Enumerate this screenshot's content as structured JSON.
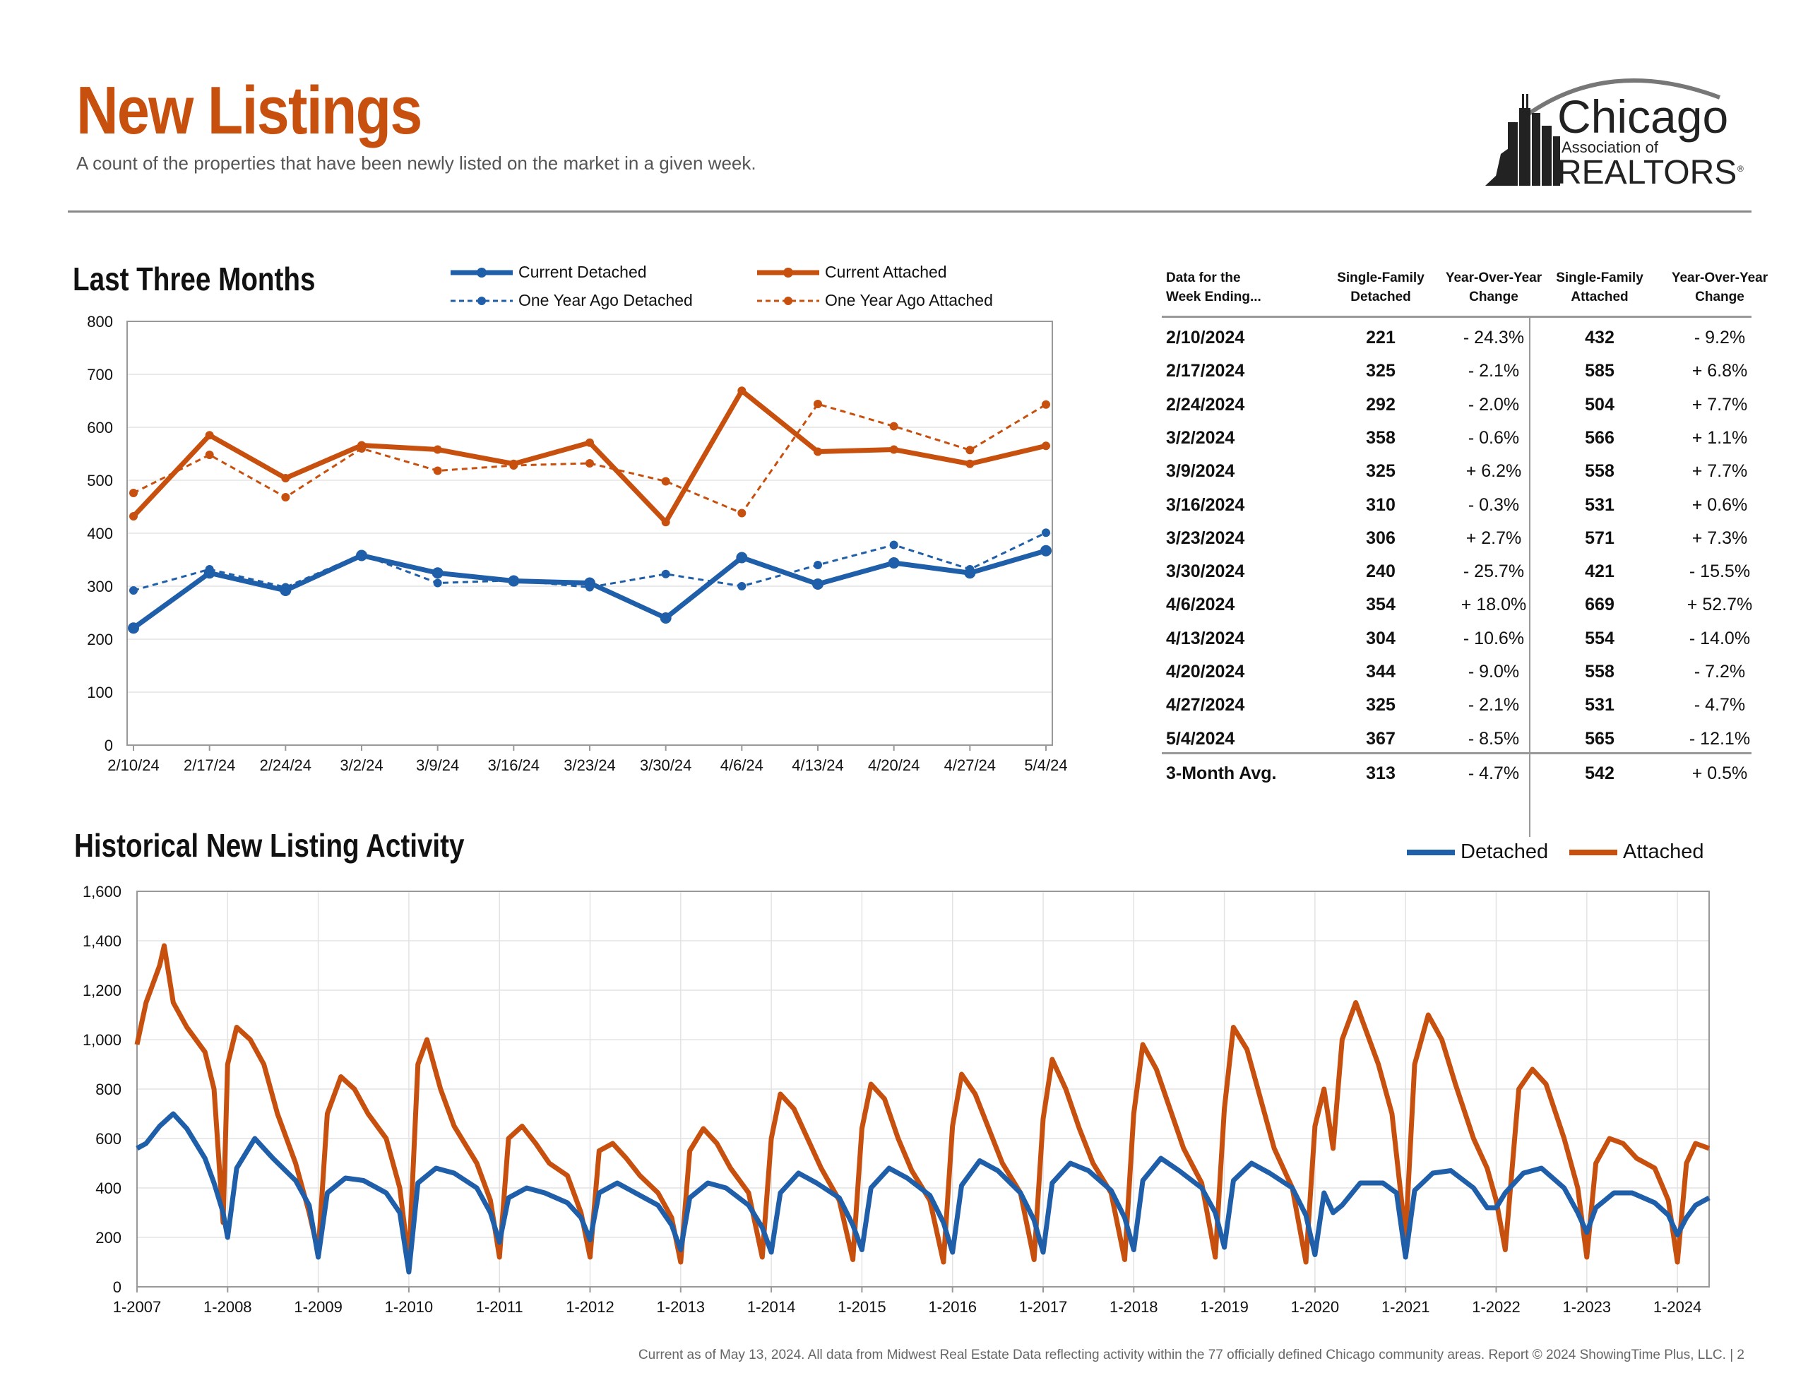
{
  "header": {
    "title": "New Listings",
    "subtitle": "A count of the properties that have been newly listed on the market in a given week."
  },
  "logo": {
    "line1": "Chicago",
    "line2": "Association of",
    "line3": "REALTORS",
    "mark": "®"
  },
  "colors": {
    "detached": "#1f5ea8",
    "attached": "#c8500e",
    "title": "#c8500e"
  },
  "three_months": {
    "title": "Last Three Months",
    "legend": {
      "current_detached": "Current Detached",
      "current_attached": "Current Attached",
      "ago_detached": "One Year Ago Detached",
      "ago_attached": "One Year Ago Attached"
    }
  },
  "table": {
    "headers": {
      "week": [
        "Data for the",
        "Week Ending..."
      ],
      "sf_detached": [
        "Single-Family",
        "Detached"
      ],
      "yoy1": [
        "Year-Over-Year",
        "Change"
      ],
      "sf_attached": [
        "Single-Family",
        "Attached"
      ],
      "yoy2": [
        "Year-Over-Year",
        "Change"
      ]
    },
    "rows": [
      [
        "2/10/2024",
        "221",
        "- 24.3%",
        "432",
        "- 9.2%"
      ],
      [
        "2/17/2024",
        "325",
        "- 2.1%",
        "585",
        "+ 6.8%"
      ],
      [
        "2/24/2024",
        "292",
        "- 2.0%",
        "504",
        "+ 7.7%"
      ],
      [
        "3/2/2024",
        "358",
        "- 0.6%",
        "566",
        "+ 1.1%"
      ],
      [
        "3/9/2024",
        "325",
        "+ 6.2%",
        "558",
        "+ 7.7%"
      ],
      [
        "3/16/2024",
        "310",
        "- 0.3%",
        "531",
        "+ 0.6%"
      ],
      [
        "3/23/2024",
        "306",
        "+ 2.7%",
        "571",
        "+ 7.3%"
      ],
      [
        "3/30/2024",
        "240",
        "- 25.7%",
        "421",
        "- 15.5%"
      ],
      [
        "4/6/2024",
        "354",
        "+ 18.0%",
        "669",
        "+ 52.7%"
      ],
      [
        "4/13/2024",
        "304",
        "- 10.6%",
        "554",
        "- 14.0%"
      ],
      [
        "4/20/2024",
        "344",
        "- 9.0%",
        "558",
        "- 7.2%"
      ],
      [
        "4/27/2024",
        "325",
        "- 2.1%",
        "531",
        "- 4.7%"
      ],
      [
        "5/4/2024",
        "367",
        "- 8.5%",
        "565",
        "- 12.1%"
      ]
    ],
    "avg": [
      "3-Month Avg.",
      "313",
      "- 4.7%",
      "542",
      "+ 0.5%"
    ]
  },
  "historical": {
    "title": "Historical New Listing Activity",
    "legend": {
      "detached": "Detached",
      "attached": "Attached"
    }
  },
  "footer": "Current as of May 13, 2024.  All data from Midwest Real Estate Data reflecting activity within the 77 officially defined Chicago community areas. Report © 2024 ShowingTime Plus, LLC.  |  2",
  "chart_data": [
    {
      "type": "line",
      "categories": [
        "2/10/24",
        "2/17/24",
        "2/24/24",
        "3/2/24",
        "3/9/24",
        "3/16/24",
        "3/23/24",
        "3/30/24",
        "4/6/24",
        "4/13/24",
        "4/20/24",
        "4/27/24",
        "5/4/24"
      ],
      "ylim": [
        0,
        800
      ],
      "yticks": [
        0,
        100,
        200,
        300,
        400,
        500,
        600,
        700,
        800
      ],
      "series": [
        {
          "name": "Current Detached",
          "values": [
            221,
            325,
            292,
            358,
            325,
            310,
            306,
            240,
            354,
            304,
            344,
            325,
            367
          ]
        },
        {
          "name": "Current Attached",
          "values": [
            432,
            585,
            504,
            566,
            558,
            531,
            571,
            421,
            669,
            554,
            558,
            531,
            565
          ]
        },
        {
          "name": "One Year Ago Detached",
          "values": [
            292,
            332,
            298,
            360,
            306,
            311,
            298,
            323,
            300,
            340,
            378,
            332,
            401
          ]
        },
        {
          "name": "One Year Ago Attached",
          "values": [
            476,
            548,
            468,
            560,
            518,
            528,
            532,
            498,
            438,
            644,
            602,
            557,
            643
          ]
        }
      ],
      "grid": true
    },
    {
      "type": "line",
      "xlabels": [
        "1-2007",
        "1-2008",
        "1-2009",
        "1-2010",
        "1-2011",
        "1-2012",
        "1-2013",
        "1-2014",
        "1-2015",
        "1-2016",
        "1-2017",
        "1-2018",
        "1-2019",
        "1-2020",
        "1-2021",
        "1-2022",
        "1-2023",
        "1-2024"
      ],
      "ylim": [
        0,
        1600
      ],
      "yticks": [
        "0",
        "200",
        "400",
        "600",
        "800",
        "1,000",
        "1,200",
        "1,400",
        "1,600"
      ],
      "x_years": [
        2007,
        2024.35
      ],
      "series": [
        {
          "name": "Detached",
          "years": [
            2007.0,
            2007.1,
            2007.25,
            2007.4,
            2007.55,
            2007.75,
            2007.85,
            2007.95,
            2008.0,
            2008.1,
            2008.3,
            2008.5,
            2008.75,
            2008.9,
            2009.0,
            2009.1,
            2009.3,
            2009.5,
            2009.75,
            2009.9,
            2010.0,
            2010.1,
            2010.3,
            2010.5,
            2010.75,
            2010.9,
            2011.0,
            2011.1,
            2011.3,
            2011.5,
            2011.75,
            2011.9,
            2012.0,
            2012.1,
            2012.3,
            2012.5,
            2012.75,
            2012.9,
            2013.0,
            2013.1,
            2013.3,
            2013.5,
            2013.75,
            2013.9,
            2014.0,
            2014.1,
            2014.3,
            2014.5,
            2014.75,
            2014.9,
            2015.0,
            2015.1,
            2015.3,
            2015.5,
            2015.75,
            2015.9,
            2016.0,
            2016.1,
            2016.3,
            2016.5,
            2016.75,
            2016.9,
            2017.0,
            2017.1,
            2017.3,
            2017.5,
            2017.75,
            2017.9,
            2018.0,
            2018.1,
            2018.3,
            2018.5,
            2018.75,
            2018.9,
            2019.0,
            2019.1,
            2019.3,
            2019.5,
            2019.75,
            2019.9,
            2020.0,
            2020.1,
            2020.2,
            2020.3,
            2020.5,
            2020.75,
            2020.9,
            2021.0,
            2021.1,
            2021.3,
            2021.5,
            2021.75,
            2021.9,
            2022.0,
            2022.1,
            2022.3,
            2022.5,
            2022.75,
            2022.9,
            2023.0,
            2023.1,
            2023.3,
            2023.5,
            2023.75,
            2023.9,
            2024.0,
            2024.1,
            2024.2,
            2024.35
          ],
          "values": [
            560,
            580,
            650,
            700,
            640,
            520,
            420,
            300,
            200,
            480,
            600,
            520,
            430,
            330,
            120,
            380,
            440,
            430,
            380,
            300,
            60,
            420,
            480,
            460,
            400,
            300,
            180,
            360,
            400,
            380,
            340,
            280,
            190,
            380,
            420,
            380,
            330,
            250,
            150,
            360,
            420,
            400,
            330,
            240,
            140,
            380,
            460,
            420,
            360,
            250,
            150,
            400,
            480,
            440,
            370,
            260,
            140,
            410,
            510,
            470,
            380,
            270,
            140,
            420,
            500,
            470,
            390,
            280,
            150,
            430,
            520,
            470,
            400,
            300,
            160,
            430,
            500,
            460,
            400,
            290,
            130,
            380,
            300,
            330,
            420,
            420,
            380,
            120,
            390,
            460,
            470,
            400,
            320,
            320,
            380,
            460,
            480,
            400,
            300,
            220,
            320,
            380,
            380,
            340,
            290,
            210,
            280,
            330,
            360
          ]
        },
        {
          "name": "Attached",
          "years": [
            2007.0,
            2007.1,
            2007.25,
            2007.3,
            2007.4,
            2007.55,
            2007.75,
            2007.85,
            2007.95,
            2008.0,
            2008.1,
            2008.25,
            2008.4,
            2008.55,
            2008.75,
            2008.9,
            2009.0,
            2009.1,
            2009.25,
            2009.4,
            2009.55,
            2009.75,
            2009.9,
            2010.0,
            2010.1,
            2010.2,
            2010.35,
            2010.5,
            2010.75,
            2010.9,
            2011.0,
            2011.1,
            2011.25,
            2011.4,
            2011.55,
            2011.75,
            2011.9,
            2012.0,
            2012.1,
            2012.25,
            2012.4,
            2012.55,
            2012.75,
            2012.9,
            2013.0,
            2013.1,
            2013.25,
            2013.4,
            2013.55,
            2013.75,
            2013.9,
            2014.0,
            2014.1,
            2014.25,
            2014.4,
            2014.55,
            2014.75,
            2014.9,
            2015.0,
            2015.1,
            2015.25,
            2015.4,
            2015.55,
            2015.75,
            2015.9,
            2016.0,
            2016.1,
            2016.25,
            2016.4,
            2016.55,
            2016.75,
            2016.9,
            2017.0,
            2017.1,
            2017.25,
            2017.4,
            2017.55,
            2017.75,
            2017.9,
            2018.0,
            2018.1,
            2018.25,
            2018.4,
            2018.55,
            2018.75,
            2018.9,
            2019.0,
            2019.1,
            2019.25,
            2019.4,
            2019.55,
            2019.75,
            2019.9,
            2020.0,
            2020.1,
            2020.2,
            2020.3,
            2020.45,
            2020.55,
            2020.7,
            2020.85,
            2021.0,
            2021.1,
            2021.25,
            2021.4,
            2021.55,
            2021.75,
            2021.9,
            2022.0,
            2022.1,
            2022.25,
            2022.4,
            2022.55,
            2022.75,
            2022.9,
            2023.0,
            2023.1,
            2023.25,
            2023.4,
            2023.55,
            2023.75,
            2023.9,
            2024.0,
            2024.1,
            2024.2,
            2024.35
          ],
          "values": [
            980,
            1150,
            1300,
            1380,
            1150,
            1050,
            950,
            800,
            260,
            900,
            1050,
            1000,
            900,
            700,
            500,
            300,
            140,
            700,
            850,
            800,
            700,
            600,
            400,
            100,
            900,
            1000,
            800,
            650,
            500,
            350,
            120,
            600,
            650,
            580,
            500,
            450,
            300,
            120,
            550,
            580,
            520,
            450,
            380,
            280,
            100,
            550,
            640,
            580,
            480,
            380,
            120,
            600,
            780,
            720,
            600,
            480,
            350,
            110,
            640,
            820,
            760,
            600,
            470,
            350,
            100,
            650,
            860,
            780,
            640,
            500,
            380,
            110,
            680,
            920,
            800,
            640,
            500,
            380,
            110,
            700,
            980,
            880,
            720,
            560,
            420,
            120,
            720,
            1050,
            960,
            760,
            560,
            400,
            100,
            650,
            800,
            560,
            1000,
            1150,
            1050,
            900,
            700,
            200,
            900,
            1100,
            1000,
            820,
            600,
            480,
            350,
            150,
            800,
            880,
            820,
            600,
            400,
            120,
            500,
            600,
            580,
            520,
            480,
            350,
            100,
            500,
            580,
            560
          ]
        }
      ],
      "grid": true
    }
  ]
}
